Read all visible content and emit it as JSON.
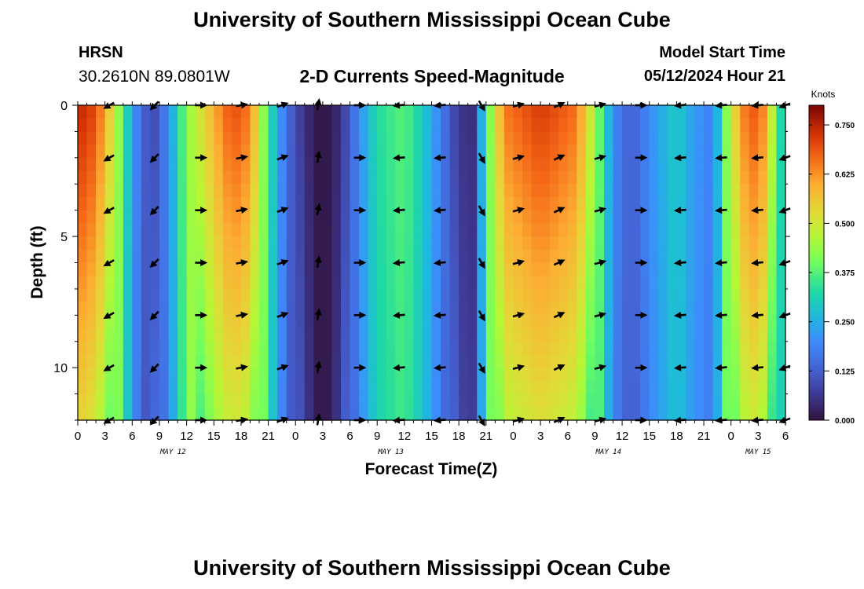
{
  "header": {
    "title": "University of Southern Mississippi Ocean Cube",
    "station": "HRSN",
    "coordinates": "30.2610N  89.0801W",
    "subtitle": "2-D Currents Speed-Magnitude",
    "model_start_label": "Model Start Time",
    "model_start_value": "05/12/2024 Hour 21",
    "footer_title": "University of Southern Mississippi Ocean Cube"
  },
  "chart_data": {
    "type": "heatmap",
    "title": "2-D Currents Speed-Magnitude",
    "xlabel": "Forecast Time(Z)",
    "ylabel": "Depth (ft)",
    "ylim": [
      0,
      12
    ],
    "y_ticks": [
      "0",
      "5",
      "10"
    ],
    "y_tick_values": [
      0,
      5,
      10
    ],
    "x_ticks": [
      "0",
      "3",
      "6",
      "9",
      "12",
      "15",
      "18",
      "21",
      "0",
      "3",
      "6",
      "9",
      "12",
      "15",
      "18",
      "21",
      "0",
      "3",
      "6",
      "9",
      "12",
      "15",
      "18",
      "21",
      "0",
      "3",
      "6"
    ],
    "x_hours_range": [
      0,
      78
    ],
    "day_labels": [
      {
        "label": "MAY 12",
        "hour": 10.5
      },
      {
        "label": "MAY 13",
        "hour": 34.5
      },
      {
        "label": "MAY 14",
        "hour": 58.5
      },
      {
        "label": "MAY 15",
        "hour": 75
      }
    ],
    "colorbar": {
      "unit": "Knots",
      "ticks": [
        "0.000",
        "0.125",
        "0.250",
        "0.375",
        "0.500",
        "0.625",
        "0.750"
      ],
      "tick_values": [
        0,
        0.125,
        0.25,
        0.375,
        0.5,
        0.625,
        0.75
      ],
      "range": [
        0,
        0.8
      ]
    },
    "speed_profile": [
      {
        "hour": 0,
        "speed": 0.75
      },
      {
        "hour": 2,
        "speed": 0.7
      },
      {
        "hour": 4,
        "speed": 0.5
      },
      {
        "hour": 5.5,
        "speed": 0.3
      },
      {
        "hour": 7,
        "speed": 0.13
      },
      {
        "hour": 8.5,
        "speed": 0.1
      },
      {
        "hour": 10,
        "speed": 0.2
      },
      {
        "hour": 12,
        "speed": 0.42
      },
      {
        "hour": 15,
        "speed": 0.6
      },
      {
        "hour": 17,
        "speed": 0.7
      },
      {
        "hour": 19,
        "speed": 0.65
      },
      {
        "hour": 21,
        "speed": 0.35
      },
      {
        "hour": 23,
        "speed": 0.15
      },
      {
        "hour": 25,
        "speed": 0.05
      },
      {
        "hour": 27,
        "speed": 0.0
      },
      {
        "hour": 29,
        "speed": 0.05
      },
      {
        "hour": 31,
        "speed": 0.2
      },
      {
        "hour": 33,
        "speed": 0.33
      },
      {
        "hour": 36,
        "speed": 0.38
      },
      {
        "hour": 38,
        "speed": 0.3
      },
      {
        "hour": 40,
        "speed": 0.18
      },
      {
        "hour": 42,
        "speed": 0.06
      },
      {
        "hour": 43.5,
        "speed": 0.05
      },
      {
        "hour": 45,
        "speed": 0.35
      },
      {
        "hour": 47,
        "speed": 0.65
      },
      {
        "hour": 51,
        "speed": 0.72
      },
      {
        "hour": 55,
        "speed": 0.66
      },
      {
        "hour": 57,
        "speed": 0.45
      },
      {
        "hour": 59,
        "speed": 0.2
      },
      {
        "hour": 61,
        "speed": 0.12
      },
      {
        "hour": 63,
        "speed": 0.2
      },
      {
        "hour": 66,
        "speed": 0.3
      },
      {
        "hour": 68,
        "speed": 0.22
      },
      {
        "hour": 70,
        "speed": 0.18
      },
      {
        "hour": 72,
        "speed": 0.5
      },
      {
        "hour": 74,
        "speed": 0.7
      },
      {
        "hour": 76,
        "speed": 0.62
      },
      {
        "hour": 77,
        "speed": 0.35
      },
      {
        "hour": 78,
        "speed": 0.3
      }
    ],
    "arrow_depths_ft": [
      0,
      2,
      4,
      6,
      8,
      10,
      12
    ],
    "arrow_columns": [
      {
        "hour": 3.5,
        "dir": 240
      },
      {
        "hour": 8.5,
        "dir": 225
      },
      {
        "hour": 13.5,
        "dir": 90
      },
      {
        "hour": 18,
        "dir": 80
      },
      {
        "hour": 22.5,
        "dir": 70
      },
      {
        "hour": 26.5,
        "dir": 10
      },
      {
        "hour": 31,
        "dir": 90
      },
      {
        "hour": 35.5,
        "dir": 265
      },
      {
        "hour": 40,
        "dir": 265
      },
      {
        "hour": 44.5,
        "dir": 150
      },
      {
        "hour": 48.5,
        "dir": 75
      },
      {
        "hour": 53,
        "dir": 65
      },
      {
        "hour": 57.5,
        "dir": 75
      },
      {
        "hour": 62,
        "dir": 90
      },
      {
        "hour": 66.5,
        "dir": 265
      },
      {
        "hour": 71,
        "dir": 265
      },
      {
        "hour": 75,
        "dir": 265
      },
      {
        "hour": 78,
        "dir": 250
      }
    ]
  }
}
